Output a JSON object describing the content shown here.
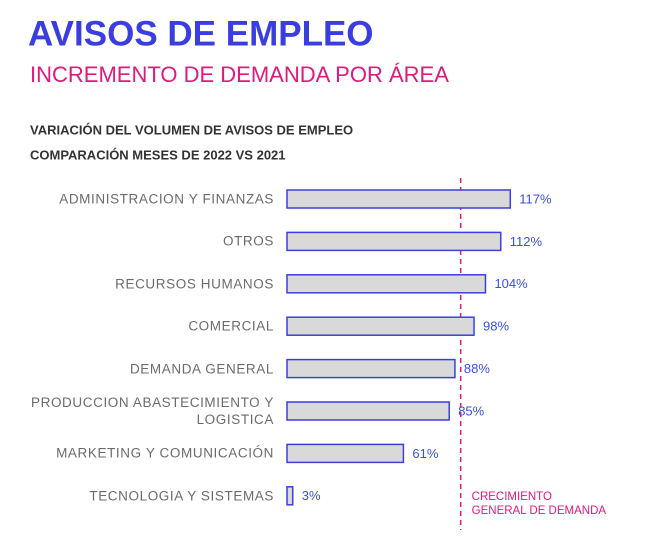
{
  "chart_data": {
    "type": "bar",
    "orientation": "horizontal",
    "title": "AVISOS DE EMPLEO",
    "subtitle": "INCREMENTO DE DEMANDA POR ÁREA",
    "description": [
      "VARIACIÓN DEL VOLUMEN DE AVISOS DE EMPLEO",
      "COMPARACIÓN MESES DE 2022 VS 2021"
    ],
    "categories": [
      "ADMINISTRACION Y FINANZAS",
      "OTROS",
      "RECURSOS HUMANOS",
      "COMERCIAL",
      "DEMANDA GENERAL",
      "PRODUCCION ABASTECIMIENTO Y LOGISTICA",
      "MARKETING Y COMUNICACIÓN",
      "TECNOLOGIA Y SISTEMAS"
    ],
    "values": [
      117,
      112,
      104,
      98,
      88,
      85,
      61,
      3
    ],
    "value_labels": [
      "117%",
      "112%",
      "104%",
      "98%",
      "88%",
      "85%",
      "61%",
      "3%"
    ],
    "color": "#d9d9d9",
    "edge_color": "#3b3fe0",
    "label_color": "#3b4fe0",
    "xlim": [
      0,
      120
    ],
    "reference_line": {
      "value": 91,
      "label": [
        "CRECIMIENTO",
        "GENERAL DE DEMANDA"
      ],
      "color": "#e0197d"
    }
  }
}
